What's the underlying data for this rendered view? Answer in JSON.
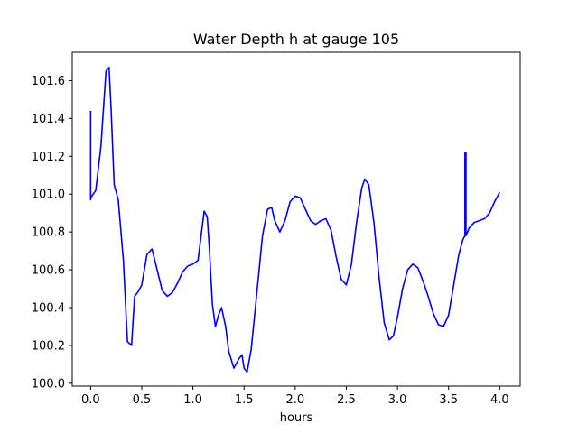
{
  "chart_data": {
    "type": "line",
    "title": "Water Depth h at gauge 105",
    "xlabel": "hours",
    "ylabel": "",
    "xlim": [
      -0.18,
      4.2
    ],
    "ylim": [
      99.985,
      101.75
    ],
    "xticks": [
      0.0,
      0.5,
      1.0,
      1.5,
      2.0,
      2.5,
      3.0,
      3.5,
      4.0
    ],
    "xtick_labels": [
      "0.0",
      "0.5",
      "1.0",
      "1.5",
      "2.0",
      "2.5",
      "3.0",
      "3.5",
      "4.0"
    ],
    "yticks": [
      100.0,
      100.2,
      100.4,
      100.6,
      100.8,
      101.0,
      101.2,
      101.4,
      101.6
    ],
    "ytick_labels": [
      "100.0",
      "100.2",
      "100.4",
      "100.6",
      "100.8",
      "101.0",
      "101.2",
      "101.4",
      "101.6"
    ],
    "grid": false,
    "series": [
      {
        "color": "#0000ff",
        "x": [
          0.0,
          0.0,
          0.0,
          0.05,
          0.1,
          0.15,
          0.18,
          0.2,
          0.23,
          0.27,
          0.32,
          0.36,
          0.4,
          0.43,
          0.46,
          0.5,
          0.55,
          0.6,
          0.65,
          0.7,
          0.75,
          0.8,
          0.85,
          0.9,
          0.95,
          1.0,
          1.05,
          1.08,
          1.11,
          1.14,
          1.16,
          1.19,
          1.22,
          1.25,
          1.28,
          1.32,
          1.35,
          1.4,
          1.45,
          1.48,
          1.5,
          1.53,
          1.57,
          1.62,
          1.68,
          1.73,
          1.77,
          1.8,
          1.85,
          1.9,
          1.95,
          2.0,
          2.05,
          2.1,
          2.15,
          2.2,
          2.25,
          2.3,
          2.35,
          2.4,
          2.45,
          2.5,
          2.55,
          2.6,
          2.65,
          2.68,
          2.72,
          2.77,
          2.82,
          2.87,
          2.92,
          2.96,
          3.0,
          3.05,
          3.1,
          3.15,
          3.2,
          3.25,
          3.3,
          3.35,
          3.4,
          3.45,
          3.5,
          3.55,
          3.6,
          3.64,
          3.66,
          3.66,
          3.67,
          3.67,
          3.7,
          3.75,
          3.8,
          3.85,
          3.9,
          3.95,
          4.0
        ],
        "y": [
          101.44,
          100.97,
          100.98,
          101.02,
          101.25,
          101.65,
          101.67,
          101.45,
          101.05,
          100.97,
          100.65,
          100.22,
          100.2,
          100.46,
          100.48,
          100.52,
          100.68,
          100.71,
          100.6,
          100.49,
          100.46,
          100.48,
          100.53,
          100.59,
          100.62,
          100.63,
          100.65,
          100.78,
          100.91,
          100.88,
          100.72,
          100.42,
          100.3,
          100.36,
          100.4,
          100.3,
          100.17,
          100.08,
          100.13,
          100.15,
          100.08,
          100.06,
          100.18,
          100.45,
          100.78,
          100.92,
          100.93,
          100.86,
          100.8,
          100.86,
          100.96,
          100.99,
          100.98,
          100.92,
          100.86,
          100.84,
          100.86,
          100.87,
          100.81,
          100.67,
          100.55,
          100.52,
          100.63,
          100.85,
          101.03,
          101.08,
          101.05,
          100.85,
          100.56,
          100.32,
          100.23,
          100.25,
          100.35,
          100.5,
          100.6,
          100.63,
          100.61,
          100.54,
          100.46,
          100.37,
          100.31,
          100.3,
          100.36,
          100.52,
          100.68,
          100.76,
          100.78,
          101.22,
          101.22,
          100.78,
          100.82,
          100.85,
          100.86,
          100.87,
          100.9,
          100.96,
          101.01
        ]
      }
    ]
  }
}
